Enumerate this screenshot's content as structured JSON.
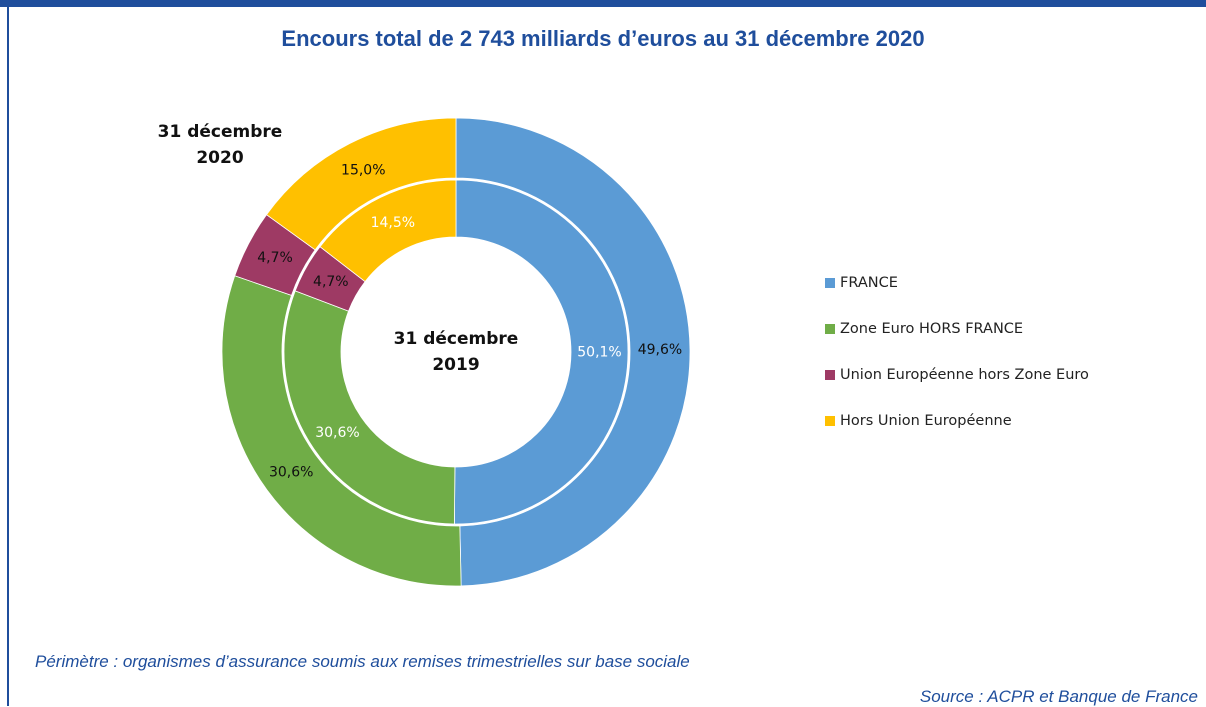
{
  "chart_data": {
    "type": "doughnut",
    "title": "Encours total de 2 743 milliards d’euros au 31 décembre 2020",
    "categories": [
      "FRANCE",
      "Zone Euro HORS FRANCE",
      "Union Européenne hors Zone Euro",
      "Hors Union Européenne"
    ],
    "colors": [
      "#5b9bd5",
      "#70ad47",
      "#9e3a64",
      "#ffc000"
    ],
    "series": [
      {
        "name": "31 décembre 2020",
        "values": [
          49.6,
          30.6,
          4.7,
          15.0
        ],
        "value_labels": [
          "49,6%",
          "30,6%",
          "4,7%",
          "15,0%"
        ]
      },
      {
        "name": "31 décembre 2019",
        "values": [
          50.1,
          30.6,
          4.7,
          14.5
        ],
        "value_labels": [
          "50,1%",
          "30,6%",
          "4,7%",
          "14,5%"
        ]
      }
    ]
  },
  "notes": {
    "scope": "Périmètre : organismes d’assurance soumis aux remises trimestrielles sur base sociale",
    "source": "Source : ACPR et Banque de France"
  }
}
